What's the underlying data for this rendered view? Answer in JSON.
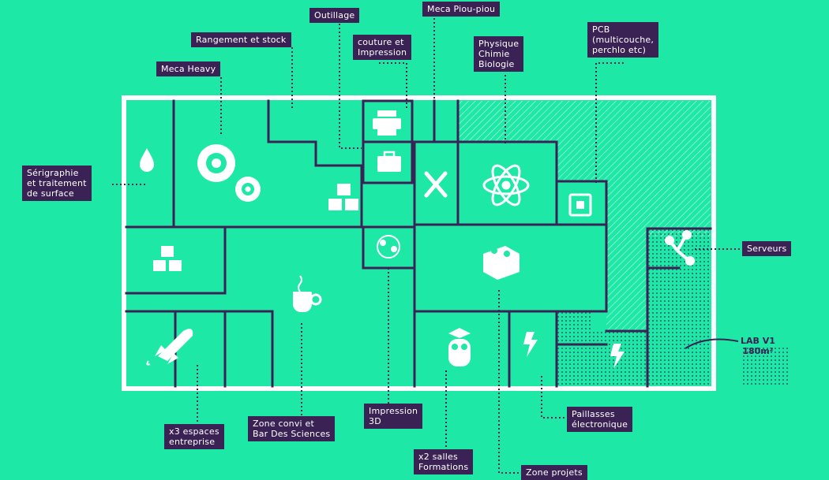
{
  "labels": {
    "outillage": "Outillage",
    "meca_piou": "Meca Piou-piou",
    "rangement": "Rangement et stock",
    "couture": "couture et\nImpression",
    "physique": "Physique\nChimie\nBiologie",
    "pcb": "PCB\n(multicouche,\nperchlo etc)",
    "meca_heavy": "Meca Heavy",
    "serigraphie": "Sérigraphie\net traitement\nde surface",
    "serveurs": "Serveurs",
    "lab_v1": "LAB V1\n180m²",
    "espaces": "x3 espaces\nentreprise",
    "zone_convi": "Zone convi et\nBar Des Sciences",
    "impression3d": "Impression\n3D",
    "paillasses": "Paillasses\nélectronique",
    "formations": "x2 salles\nFormations",
    "zone_projets": "Zone projets"
  },
  "colors": {
    "background": "#1ee8a6",
    "wall": "#3b2255",
    "outline": "#ffffff",
    "label_bg": "#3b2255",
    "label_text": "#ffffff"
  },
  "icons": [
    "drop-icon",
    "gears-icon",
    "cubes-icon",
    "printer-icon",
    "toolbox-icon",
    "tools-icon",
    "atom-icon",
    "chip-icon",
    "network-icon",
    "cubes-icon",
    "coffee-icon",
    "molecule-icon",
    "lego-brick-icon",
    "rocket-icon",
    "owl-icon",
    "lightning-icon",
    "lightning-icon"
  ]
}
